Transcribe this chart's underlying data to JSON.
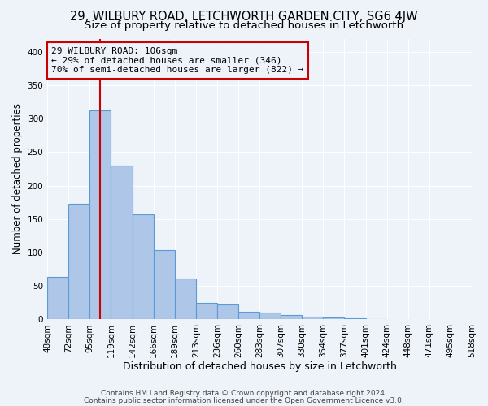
{
  "title1": "29, WILBURY ROAD, LETCHWORTH GARDEN CITY, SG6 4JW",
  "title2": "Size of property relative to detached houses in Letchworth",
  "xlabel": "Distribution of detached houses by size in Letchworth",
  "ylabel": "Number of detached properties",
  "bar_values": [
    63,
    173,
    313,
    230,
    157,
    104,
    61,
    25,
    22,
    11,
    10,
    6,
    4,
    3,
    2,
    1
  ],
  "n_bins": 16,
  "n_ticks": 21,
  "tick_labels": [
    "48sqm",
    "72sqm",
    "95sqm",
    "119sqm",
    "142sqm",
    "166sqm",
    "189sqm",
    "213sqm",
    "236sqm",
    "260sqm",
    "283sqm",
    "307sqm",
    "330sqm",
    "354sqm",
    "377sqm",
    "401sqm",
    "424sqm",
    "448sqm",
    "471sqm",
    "495sqm",
    "518sqm"
  ],
  "bar_color": "#aec6e8",
  "bar_edge_color": "#5b9bd5",
  "vline_bin": 2.5,
  "vline_color": "#cc0000",
  "annotation_title": "29 WILBURY ROAD: 106sqm",
  "annotation_line1": "← 29% of detached houses are smaller (346)",
  "annotation_line2": "70% of semi-detached houses are larger (822) →",
  "annotation_box_color": "#cc0000",
  "ylim": [
    0,
    420
  ],
  "yticks": [
    0,
    50,
    100,
    150,
    200,
    250,
    300,
    350,
    400
  ],
  "background_color": "#eef2f9",
  "footnote1": "Contains HM Land Registry data © Crown copyright and database right 2024.",
  "footnote2": "Contains public sector information licensed under the Open Government Licence v3.0.",
  "title1_fontsize": 10.5,
  "title2_fontsize": 9.5,
  "xlabel_fontsize": 9,
  "ylabel_fontsize": 8.5,
  "tick_fontsize": 7.5,
  "annotation_fontsize": 8,
  "footnote_fontsize": 6.5
}
